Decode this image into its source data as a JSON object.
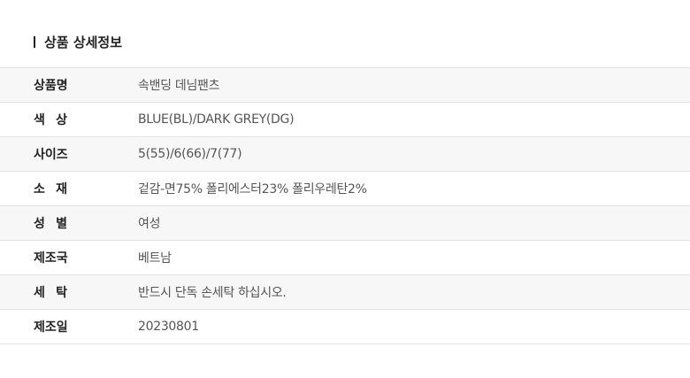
{
  "section": {
    "title": "상품 상세정보"
  },
  "rows": [
    {
      "label": "상품명",
      "value": "속밴딩 데님팬츠"
    },
    {
      "label": "색 상",
      "value": "BLUE(BL)/DARK GREY(DG)"
    },
    {
      "label": "사이즈",
      "value": "5(55)/6(66)/7(77)"
    },
    {
      "label": "소 재",
      "value": "겉감-면75% 폴리에스터23% 폴리우레탄2%"
    },
    {
      "label": "성 별",
      "value": "여성"
    },
    {
      "label": "제조국",
      "value": "베트남"
    },
    {
      "label": "세 탁",
      "value": "반드시 단독 손세탁 하십시오."
    },
    {
      "label": "제조일",
      "value": "20230801"
    }
  ]
}
